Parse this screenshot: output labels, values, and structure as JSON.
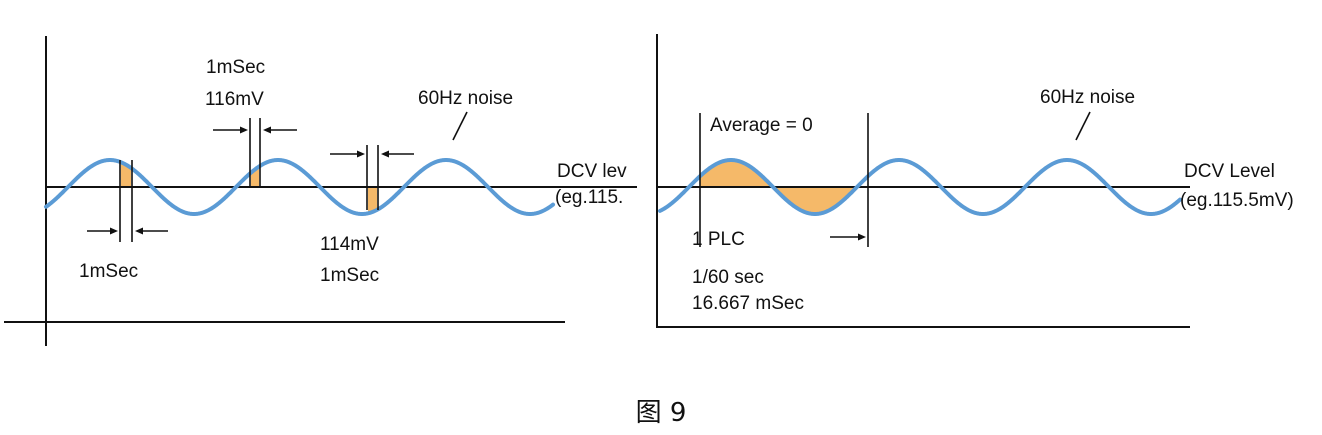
{
  "left": {
    "labels": {
      "top_width": "1mSec",
      "top_value": "116mV",
      "noise": "60Hz noise",
      "dcv_level": "DCV lev",
      "dcv_example": "(eg.115.",
      "bottom_left_width": "1mSec",
      "bottom_mid_value": "114mV",
      "bottom_mid_width": "1mSec"
    }
  },
  "right": {
    "labels": {
      "average": "Average = 0",
      "noise": "60Hz noise",
      "dcv_level": "DCV Level",
      "dcv_example": "(eg.115.5mV)",
      "plc": "1 PLC",
      "period": "1/60 sec",
      "period_ms": "16.667 mSec"
    }
  },
  "caption": "图 9",
  "colors": {
    "wave": "#5b9bd5",
    "shade": "#f5b969",
    "ink": "#111111"
  }
}
